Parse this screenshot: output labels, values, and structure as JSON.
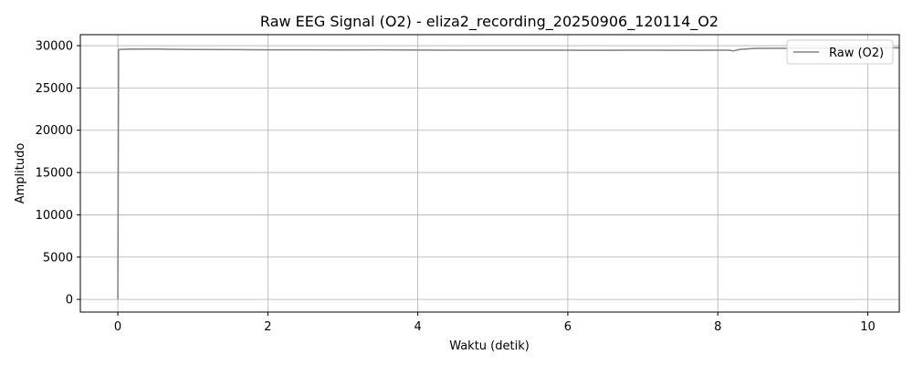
{
  "chart_data": {
    "type": "line",
    "title": "Raw EEG Signal (O2) - eliza2_recording_20250906_120114_O2",
    "xlabel": "Waktu (detik)",
    "ylabel": "Amplitudo",
    "xlim": [
      -0.5,
      10.42
    ],
    "ylim": [
      -1500,
      31300
    ],
    "xticks": [
      0,
      2,
      4,
      6,
      8,
      10
    ],
    "yticks": [
      0,
      5000,
      10000,
      15000,
      20000,
      25000,
      30000
    ],
    "grid": true,
    "legend_position": "top-right",
    "series": [
      {
        "name": "Raw (O2)",
        "color": "#808080",
        "x": [
          0,
          0.01,
          0.02,
          0.1,
          0.2,
          0.3,
          0.5,
          0.7,
          1.0,
          1.5,
          2.0,
          2.5,
          3.0,
          3.5,
          4.0,
          4.5,
          5.0,
          5.5,
          6.0,
          6.5,
          7.0,
          7.5,
          8.0,
          8.15,
          8.2,
          8.3,
          8.5,
          9.0,
          9.5,
          10.0,
          10.42
        ],
        "values": [
          0,
          29500,
          29560,
          29580,
          29600,
          29590,
          29600,
          29570,
          29550,
          29530,
          29510,
          29500,
          29490,
          29500,
          29480,
          29470,
          29470,
          29460,
          29460,
          29450,
          29460,
          29450,
          29460,
          29460,
          29380,
          29560,
          29680,
          29700,
          29720,
          29740,
          29750
        ]
      }
    ]
  }
}
